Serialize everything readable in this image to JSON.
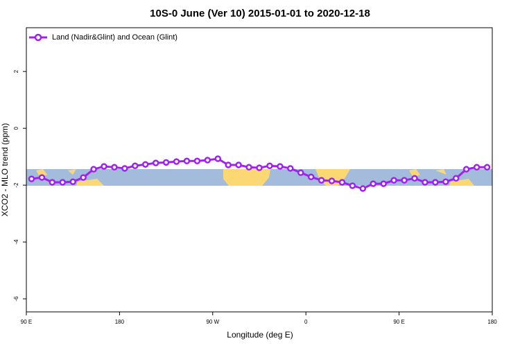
{
  "chart_data": {
    "type": "line",
    "title": "10S-0 June (Ver 10)   2015-01-01 to 2020-12-18",
    "xlabel": "Longitude (deg E)",
    "ylabel": "XCO2 - MLO trend (ppm)",
    "xlim": [
      90,
      540
    ],
    "xticks": [
      {
        "value": 90,
        "label": "90 E"
      },
      180,
      {
        "value": 270,
        "label": "90 W"
      },
      {
        "value": 360,
        "label": "0"
      },
      {
        "value": 450,
        "label": "90 E"
      },
      {
        "value": 540,
        "label": "180"
      }
    ],
    "ylim": [
      -6.46,
      3.54
    ],
    "yticks": [
      2,
      0,
      -2,
      -4,
      -6
    ],
    "legend": "top-left",
    "x": [
      95,
      105,
      115,
      125,
      135,
      145,
      155,
      165,
      175,
      185,
      195,
      205,
      215,
      225,
      235,
      245,
      255,
      265,
      275,
      285,
      295,
      305,
      315,
      325,
      335,
      345,
      355,
      365,
      375,
      385,
      395,
      405,
      415,
      425,
      435,
      445,
      455,
      465,
      475,
      485,
      495,
      505,
      515,
      525,
      535
    ],
    "series": [
      {
        "name": "Land (Nadir&Glint) and Ocean (Glint)",
        "color": "#a020f0",
        "values": [
          -1.78,
          -1.73,
          -1.9,
          -1.9,
          -1.88,
          -1.73,
          -1.44,
          -1.34,
          -1.37,
          -1.41,
          -1.32,
          -1.27,
          -1.22,
          -1.2,
          -1.17,
          -1.15,
          -1.15,
          -1.12,
          -1.07,
          -1.29,
          -1.29,
          -1.37,
          -1.39,
          -1.32,
          -1.34,
          -1.41,
          -1.56,
          -1.71,
          -1.83,
          -1.85,
          -1.9,
          -2.02,
          -2.12,
          -1.95,
          -1.95,
          -1.83,
          -1.83,
          -1.76,
          -1.9,
          -1.9,
          -1.88,
          -1.76,
          -1.44,
          -1.37,
          -1.37
        ]
      }
    ]
  }
}
